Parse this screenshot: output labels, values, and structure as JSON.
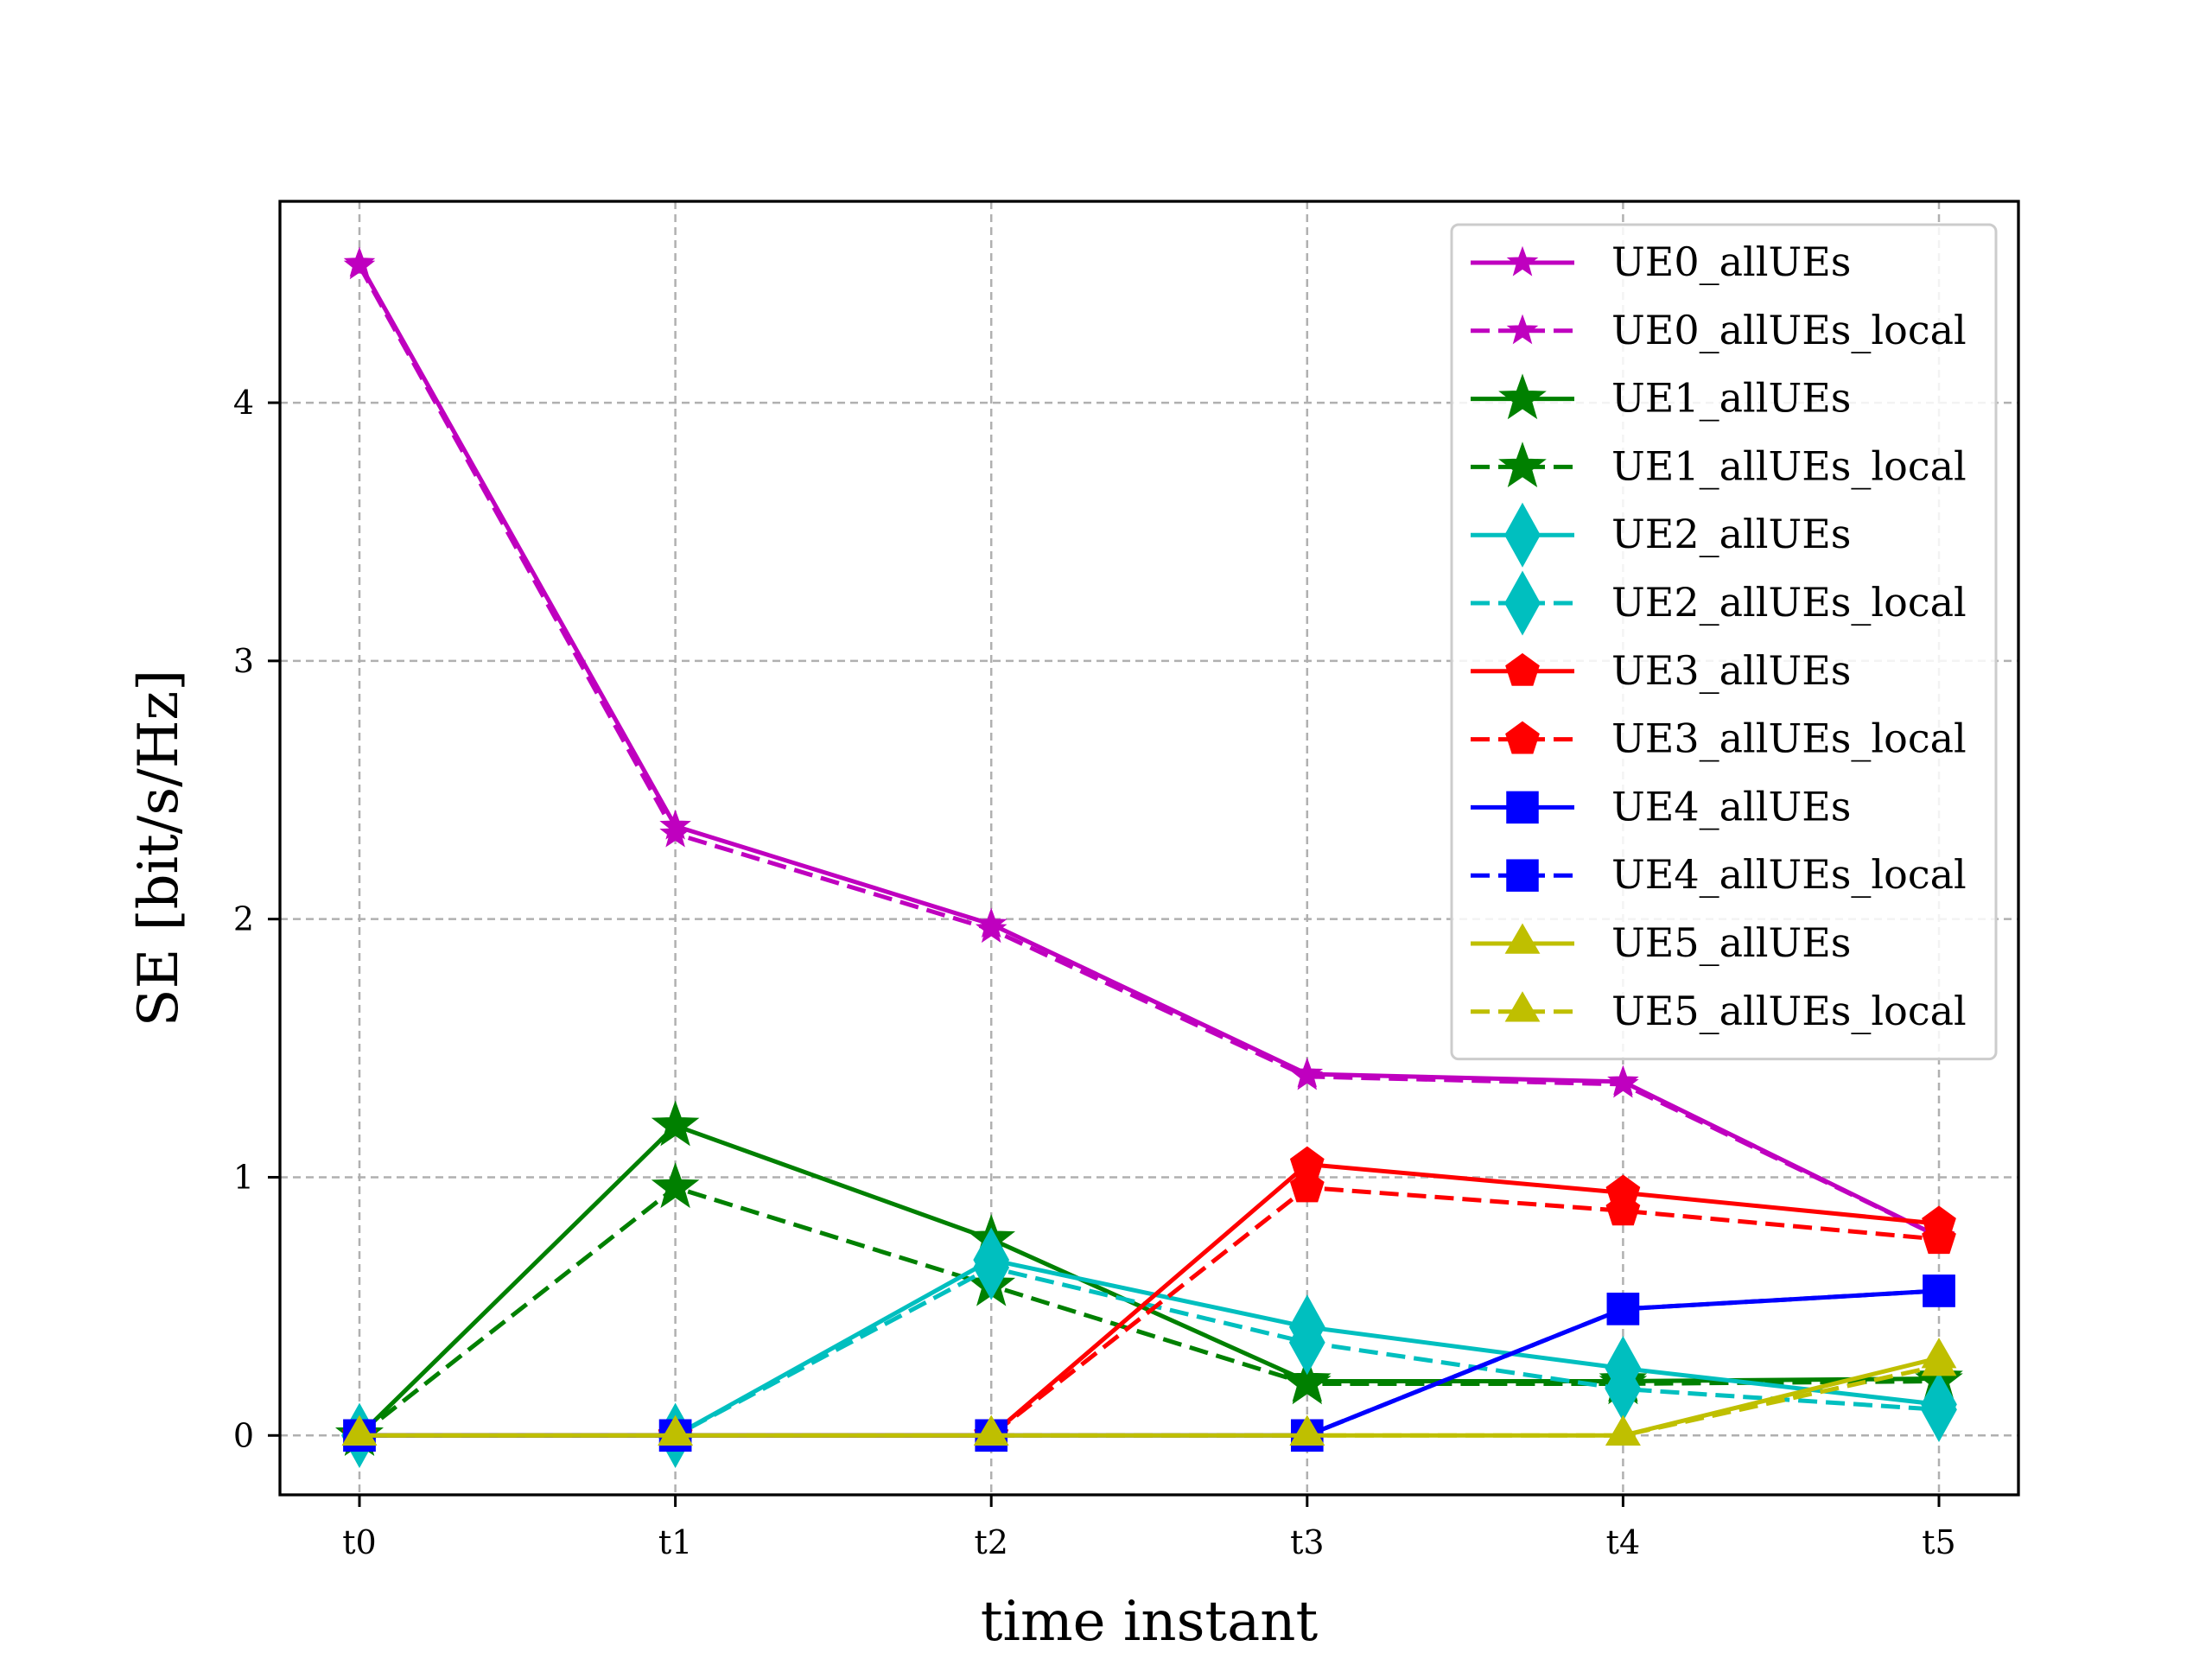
{
  "chart_data": {
    "type": "line",
    "xlabel": "time instant",
    "ylabel": "SE [bit/s/Hz]",
    "categories": [
      "t0",
      "t1",
      "t2",
      "t3",
      "t4",
      "t5"
    ],
    "ylim": [
      -0.23,
      4.78
    ],
    "yticks": [
      0,
      1,
      2,
      3,
      4
    ],
    "grid": true,
    "legend_position": "top-right",
    "series": [
      {
        "name": "UE0_allUEs",
        "color": "#bf00bf",
        "dash": "solid",
        "marker": "star-small",
        "values": [
          4.54,
          2.36,
          1.98,
          1.4,
          1.37,
          0.77
        ]
      },
      {
        "name": "UE0_allUEs_local",
        "color": "#bf00bf",
        "dash": "dashed",
        "marker": "star-small",
        "values": [
          4.53,
          2.33,
          1.96,
          1.39,
          1.36,
          0.77
        ]
      },
      {
        "name": "UE1_allUEs",
        "color": "#008000",
        "dash": "solid",
        "marker": "star",
        "values": [
          0,
          1.2,
          0.76,
          0.21,
          0.21,
          0.22
        ]
      },
      {
        "name": "UE1_allUEs_local",
        "color": "#008000",
        "dash": "dashed",
        "marker": "star",
        "values": [
          0,
          0.96,
          0.58,
          0.2,
          0.2,
          0.21
        ]
      },
      {
        "name": "UE2_allUEs",
        "color": "#00bfbf",
        "dash": "solid",
        "marker": "thin-diamond",
        "values": [
          0,
          0,
          0.68,
          0.42,
          0.26,
          0.12
        ]
      },
      {
        "name": "UE2_allUEs_local",
        "color": "#00bfbf",
        "dash": "dashed",
        "marker": "thin-diamond",
        "values": [
          0,
          0,
          0.65,
          0.36,
          0.18,
          0.1
        ]
      },
      {
        "name": "UE3_allUEs",
        "color": "#ff0000",
        "dash": "solid",
        "marker": "pentagon",
        "values": [
          0,
          0,
          0,
          1.05,
          0.94,
          0.82
        ]
      },
      {
        "name": "UE3_allUEs_local",
        "color": "#ff0000",
        "dash": "dashed",
        "marker": "pentagon",
        "values": [
          0,
          0,
          0,
          0.96,
          0.87,
          0.76
        ]
      },
      {
        "name": "UE4_allUEs",
        "color": "#0000ff",
        "dash": "solid",
        "marker": "square",
        "values": [
          0,
          0,
          0,
          0,
          0.49,
          0.56
        ]
      },
      {
        "name": "UE4_allUEs_local",
        "color": "#0000ff",
        "dash": "dashed",
        "marker": "square",
        "values": [
          0,
          0,
          0,
          0,
          0.49,
          0.56
        ]
      },
      {
        "name": "UE5_allUEs",
        "color": "#bfbf00",
        "dash": "solid",
        "marker": "triangle",
        "values": [
          0,
          0,
          0,
          0,
          0,
          0.3
        ]
      },
      {
        "name": "UE5_allUEs_local",
        "color": "#bfbf00",
        "dash": "dashed",
        "marker": "triangle",
        "values": [
          0,
          0,
          0,
          0,
          0,
          0.27
        ]
      }
    ]
  }
}
